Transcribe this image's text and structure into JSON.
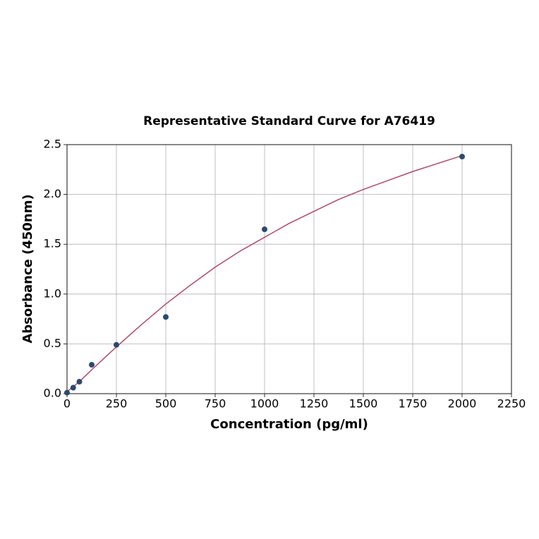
{
  "chart_data": {
    "type": "scatter",
    "title": "Representative Standard Curve for A76419",
    "x_label": "Concentration (pg/ml)",
    "y_label": "Absorbance (450nm)",
    "xlim": [
      0,
      2250
    ],
    "ylim": [
      0,
      2.5
    ],
    "xticks": [
      0,
      250,
      500,
      750,
      1000,
      1250,
      1500,
      1750,
      2000,
      2250
    ],
    "yticks": [
      {
        "value": 0,
        "label": "0.0"
      },
      0.5,
      {
        "value": 1,
        "label": "1.0"
      },
      1.5,
      {
        "value": 2,
        "label": "2.0"
      },
      2.5
    ],
    "grid": true,
    "series": [
      {
        "type": "scatter",
        "color": "#2b4a6f",
        "x": [
          0,
          31.25,
          62.5,
          125,
          250,
          500,
          1000,
          2000
        ],
        "values": [
          0.01,
          0.06,
          0.12,
          0.29,
          0.49,
          0.77,
          1.65,
          2.38
        ]
      },
      {
        "type": "line",
        "color": "#b5476a",
        "x": [
          0,
          62.5,
          125,
          250,
          375,
          500,
          625,
          750,
          875,
          1000,
          1125,
          1250,
          1375,
          1500,
          1625,
          1750,
          1875,
          2000
        ],
        "values": [
          0.02,
          0.12,
          0.24,
          0.47,
          0.69,
          0.9,
          1.09,
          1.27,
          1.43,
          1.57,
          1.71,
          1.83,
          1.95,
          2.05,
          2.14,
          2.23,
          2.31,
          2.39
        ]
      }
    ]
  }
}
